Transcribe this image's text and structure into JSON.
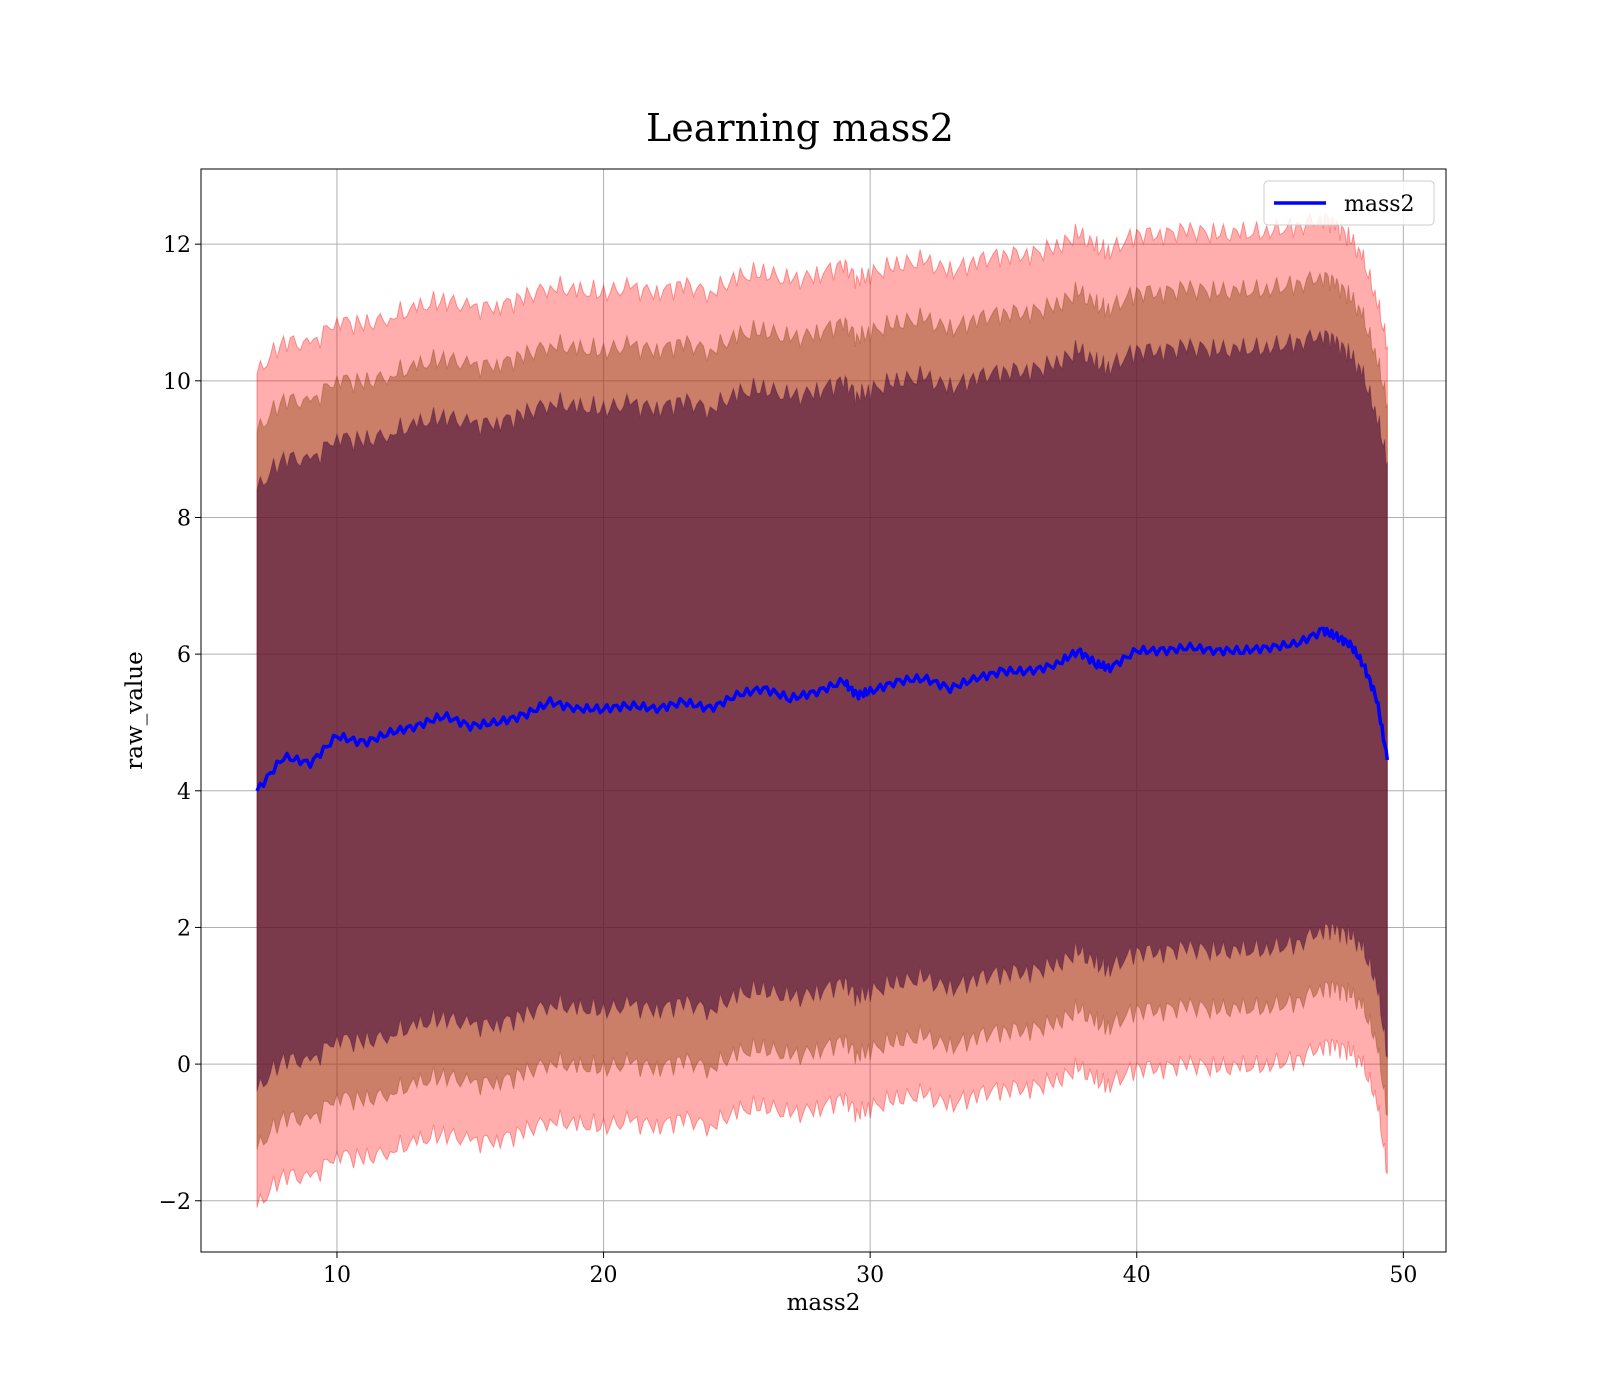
{
  "chart_data": {
    "type": "area",
    "title": "Learning mass2",
    "xlabel": "mass2",
    "ylabel": "raw_value",
    "xlim": [
      4.9,
      51.6
    ],
    "ylim": [
      -2.75,
      13.1
    ],
    "xticks": [
      10,
      20,
      30,
      40,
      50
    ],
    "yticks": [
      -2,
      0,
      2,
      4,
      6,
      8,
      10,
      12
    ],
    "xtick_labels": [
      "10",
      "20",
      "30",
      "40",
      50
    ],
    "ytick_labels": [
      "−2",
      "0",
      "2",
      "4",
      "6",
      "8",
      "10",
      "12"
    ],
    "grid": true,
    "legend": {
      "position": "top-right",
      "entries": [
        {
          "name": "mass2",
          "color": "#0000ff"
        }
      ]
    },
    "colors": {
      "line": "#0000ff",
      "band_outer": "#ff0000",
      "band_middle": "#8b4513",
      "band_inner": "#4b0f3c"
    },
    "series": [
      {
        "name": "mass2",
        "x": [
          7.0,
          8.0,
          9.0,
          10.0,
          11.0,
          12.0,
          13.0,
          14.0,
          15.0,
          16.0,
          17.0,
          18.0,
          19.0,
          20.0,
          21.0,
          22.0,
          23.0,
          24.0,
          25.0,
          26.0,
          27.0,
          28.0,
          29.0,
          29.5,
          30.0,
          31.0,
          32.0,
          33.0,
          34.0,
          35.0,
          36.0,
          37.0,
          37.8,
          38.5,
          39.0,
          40.0,
          41.0,
          42.0,
          43.0,
          44.0,
          45.0,
          46.0,
          47.0,
          47.5,
          48.0,
          48.5,
          49.0,
          49.4
        ],
        "y": [
          4.0,
          4.5,
          4.4,
          4.8,
          4.7,
          4.85,
          4.95,
          5.1,
          4.95,
          5.0,
          5.1,
          5.3,
          5.2,
          5.2,
          5.25,
          5.2,
          5.3,
          5.2,
          5.4,
          5.5,
          5.35,
          5.45,
          5.6,
          5.4,
          5.45,
          5.6,
          5.65,
          5.5,
          5.65,
          5.75,
          5.75,
          5.85,
          6.05,
          5.85,
          5.8,
          6.05,
          6.05,
          6.1,
          6.05,
          6.05,
          6.1,
          6.15,
          6.35,
          6.25,
          6.15,
          5.85,
          5.35,
          4.45
        ]
      }
    ],
    "bands": [
      {
        "label": "outer",
        "color": "#ff0000",
        "half_width": [
          6.1,
          6.1,
          6.1,
          6.1,
          6.1,
          6.1,
          6.1,
          6.1,
          6.1,
          6.1,
          6.1,
          6.1,
          6.1,
          6.1,
          6.1,
          6.1,
          6.1,
          6.1,
          6.1,
          6.1,
          6.1,
          6.1,
          6.1,
          6.1,
          6.1,
          6.1,
          6.1,
          6.1,
          6.1,
          6.1,
          6.1,
          6.1,
          6.1,
          6.1,
          6.1,
          6.1,
          6.1,
          6.1,
          6.1,
          6.1,
          6.1,
          6.1,
          6.05,
          6.0,
          5.95,
          5.9,
          5.85,
          6.05
        ]
      },
      {
        "label": "middle",
        "color": "#8b4513",
        "half_width": [
          5.25,
          5.25,
          5.25,
          5.25,
          5.25,
          5.25,
          5.25,
          5.25,
          5.25,
          5.25,
          5.25,
          5.25,
          5.25,
          5.25,
          5.25,
          5.25,
          5.25,
          5.25,
          5.25,
          5.25,
          5.25,
          5.25,
          5.25,
          5.25,
          5.25,
          5.25,
          5.25,
          5.25,
          5.25,
          5.25,
          5.25,
          5.25,
          5.25,
          5.25,
          5.25,
          5.25,
          5.25,
          5.25,
          5.25,
          5.25,
          5.25,
          5.25,
          5.2,
          5.15,
          5.1,
          5.05,
          5.0,
          5.2
        ]
      },
      {
        "label": "inner",
        "color": "#4b0f3c",
        "half_width": [
          4.4,
          4.4,
          4.4,
          4.4,
          4.4,
          4.4,
          4.4,
          4.4,
          4.4,
          4.4,
          4.4,
          4.4,
          4.4,
          4.4,
          4.4,
          4.4,
          4.4,
          4.4,
          4.4,
          4.4,
          4.4,
          4.4,
          4.4,
          4.4,
          4.4,
          4.4,
          4.4,
          4.4,
          4.4,
          4.4,
          4.4,
          4.4,
          4.4,
          4.4,
          4.4,
          4.4,
          4.4,
          4.4,
          4.4,
          4.4,
          4.4,
          4.4,
          4.35,
          4.3,
          4.25,
          4.2,
          4.15,
          4.35
        ]
      }
    ]
  }
}
